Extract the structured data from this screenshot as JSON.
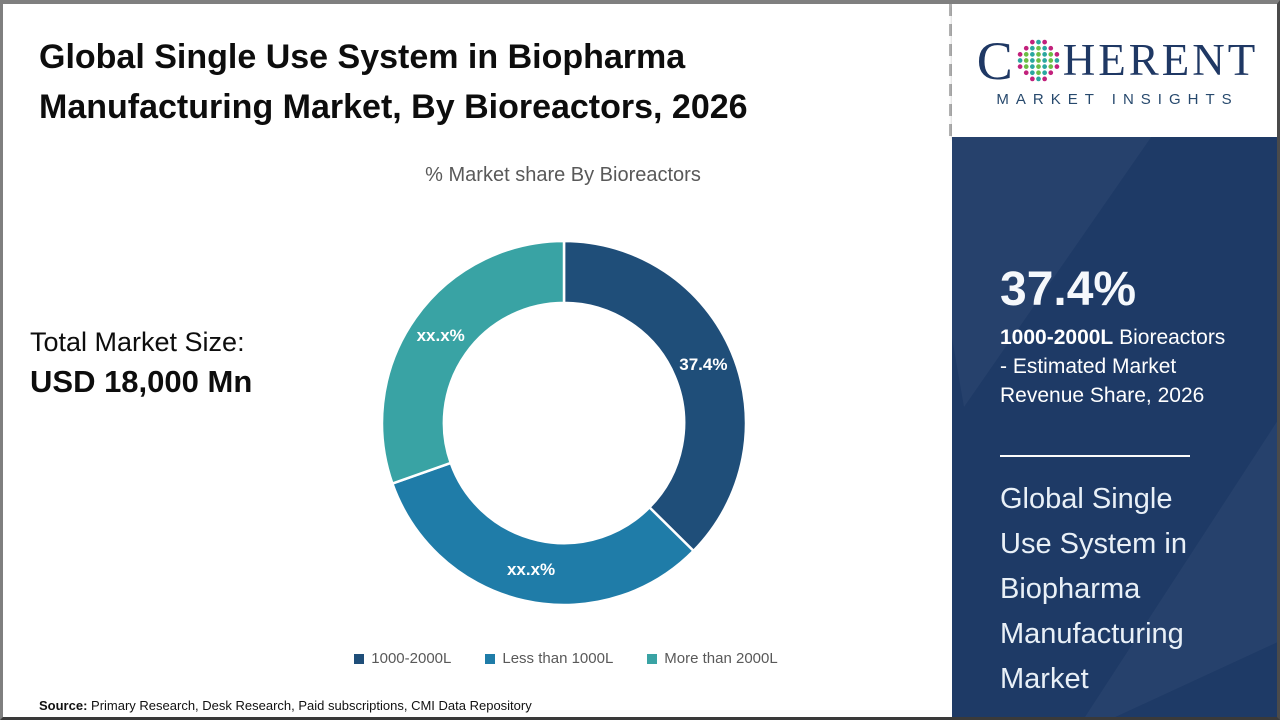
{
  "header": {
    "title_line1": "Global Single Use System in Biopharma",
    "title_line2": "Manufacturing Market, By Bioreactors, 2026"
  },
  "total_market": {
    "label": "Total Market Size:",
    "value": "USD 18,000 Mn"
  },
  "chart_data": {
    "type": "pie",
    "subtype": "donut",
    "title": "% Market share By Bioreactors",
    "categories": [
      "1000-2000L",
      "Less than 1000L",
      "More than 2000L"
    ],
    "values": [
      37.4,
      32.2,
      30.4
    ],
    "labels": [
      "37.4%",
      "xx.x%",
      "xx.x%"
    ],
    "colors": [
      "#1F4E79",
      "#1F7CA8",
      "#39A3A4"
    ],
    "start_angle_deg": 0,
    "direction": "clockwise",
    "inner_radius_ratio": 0.66,
    "legend_position": "bottom"
  },
  "source": {
    "label": "Source:",
    "text": " Primary Research, Desk Research, Paid subscriptions, CMI Data Repository"
  },
  "sidebar": {
    "logo": {
      "part1": "C",
      "part2": "HERENT",
      "subtitle": "MARKET INSIGHTS",
      "navy": "#1F3864",
      "dot_magenta": "#C2217C",
      "dot_teal": "#2AA7A0",
      "dot_green": "#6CBE45"
    },
    "stat_value": "37.4%",
    "stat_desc_bold": "1000-2000L",
    "stat_desc_rest": " Bioreactors - Estimated Market Revenue Share, 2026",
    "panel_title": "Global Single Use System in Biopharma Manufacturing Market",
    "panel_bg": "#1E3A66"
  }
}
